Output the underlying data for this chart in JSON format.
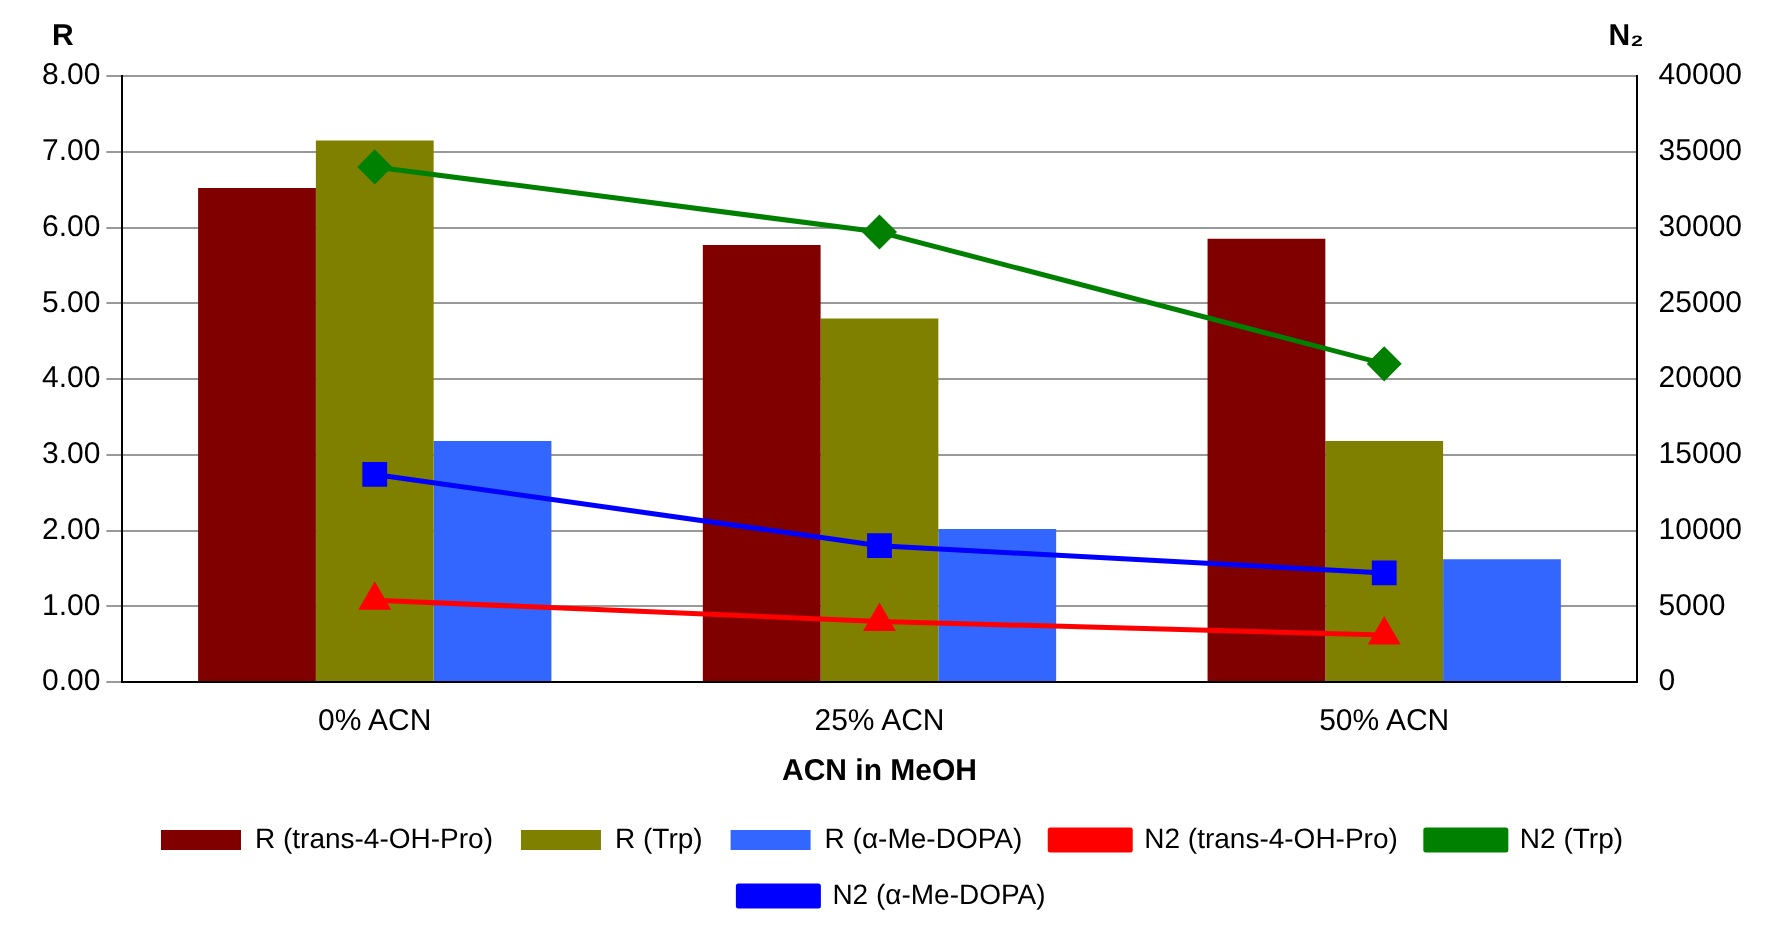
{
  "chart_data": {
    "type": "bar",
    "xlabel": "ACN in MeOH",
    "ylabel": "R",
    "y2label": "N₂",
    "categories": [
      "0% ACN",
      "25% ACN",
      "50% ACN"
    ],
    "series": [
      {
        "name": "R (trans-4-OH-Pro)",
        "color": "#800000",
        "values": [
          6.52,
          5.77,
          5.85
        ]
      },
      {
        "name": "R (Trp)",
        "color": "#808000",
        "values": [
          7.15,
          4.8,
          3.18
        ]
      },
      {
        "name": "R (α-Me-DOPA)",
        "color": "#3366ff",
        "values": [
          3.18,
          2.02,
          1.62
        ]
      },
      {
        "name": "N2 (trans-4-OH-Pro)",
        "type": "line",
        "axis": "y2",
        "marker": "triangle",
        "color": "#ff0000",
        "values": [
          5400,
          4000,
          3100
        ]
      },
      {
        "name": "N2 (Trp)",
        "type": "line",
        "axis": "y2",
        "marker": "diamond",
        "color": "#008000",
        "values": [
          34000,
          29700,
          21000
        ]
      },
      {
        "name": "N2 (α-Me-DOPA)",
        "type": "line",
        "axis": "y2",
        "marker": "square",
        "color": "#0000ff",
        "values": [
          13700,
          9000,
          7200
        ]
      }
    ],
    "ylim": [
      0,
      8
    ],
    "yticks": [
      {
        "value": 0,
        "label": "0.00"
      },
      {
        "value": 1,
        "label": "1.00"
      },
      {
        "value": 2,
        "label": "2.00"
      },
      {
        "value": 3,
        "label": "3.00"
      },
      {
        "value": 4,
        "label": "4.00"
      },
      {
        "value": 5,
        "label": "5.00"
      },
      {
        "value": 6,
        "label": "6.00"
      },
      {
        "value": 7,
        "label": "7.00"
      },
      {
        "value": 8,
        "label": "8.00"
      }
    ],
    "y2lim": [
      0,
      40000
    ],
    "y2ticks": [
      0,
      5000,
      10000,
      15000,
      20000,
      25000,
      30000,
      35000,
      40000
    ],
    "grid": "y",
    "legend": "bottom"
  }
}
